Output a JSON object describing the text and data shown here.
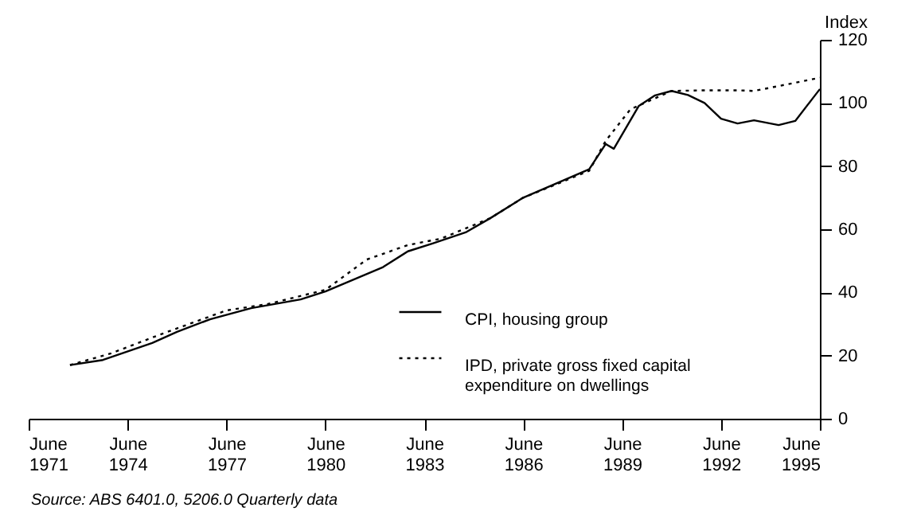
{
  "chart_data": {
    "type": "line",
    "ylabel": "Index",
    "xlim": [
      "1971-06",
      "1995-06"
    ],
    "xticks": [
      {
        "value": "1971-06",
        "label": "June 1971"
      },
      {
        "value": "1974-06",
        "label": "June 1974"
      },
      {
        "value": "1977-06",
        "label": "June 1977"
      },
      {
        "value": "1980-06",
        "label": "June 1980"
      },
      {
        "value": "1983-06",
        "label": "June 1983"
      },
      {
        "value": "1986-06",
        "label": "June 1986"
      },
      {
        "value": "1989-06",
        "label": "June 1989"
      },
      {
        "value": "1992-06",
        "label": "June 1992"
      },
      {
        "value": "1995-06",
        "label": "June 1995"
      }
    ],
    "ylim": [
      0,
      120
    ],
    "yticks": [
      0,
      20,
      40,
      60,
      80,
      100,
      120
    ],
    "grid": false,
    "legend": "bottom right",
    "marker": "none",
    "annotations": [
      "Source: ABS 6401.0, 5206.0 Quarterly data"
    ],
    "series": [
      {
        "name": "CPI, housing group",
        "color": "#000000",
        "line_style": "solid",
        "x": [
          "1972-09",
          "1973-09",
          "1975-03",
          "1975-12",
          "1976-12",
          "1978-03",
          "1979-09",
          "1980-06",
          "1982-03",
          "1982-12",
          "1983-09",
          "1984-09",
          "1985-06",
          "1986-06",
          "1988-06",
          "1988-12",
          "1989-03",
          "1989-12",
          "1990-06",
          "1990-12",
          "1991-06",
          "1991-12",
          "1992-06",
          "1992-12",
          "1993-06",
          "1994-03",
          "1994-09",
          "1995-03",
          "1995-06"
        ],
        "values": [
          17,
          18.6,
          24,
          27.5,
          31.5,
          35,
          37.8,
          40.3,
          48,
          53,
          55.5,
          59,
          63.5,
          70,
          79,
          87,
          85.5,
          99,
          102.4,
          103.8,
          102.5,
          100,
          95,
          93.5,
          94.5,
          93,
          94.3,
          101,
          104.4
        ]
      },
      {
        "name": "IPD, private gross fixed capital expenditure on dwellings",
        "color": "#000000",
        "line_style": "dotted",
        "x": [
          "1972-09",
          "1973-12",
          "1975-06",
          "1977-06",
          "1978-09",
          "1980-06",
          "1981-09",
          "1982-12",
          "1983-12",
          "1985-06",
          "1986-06",
          "1988-06",
          "1988-12",
          "1989-09",
          "1990-12",
          "1991-12",
          "1992-12",
          "1993-06",
          "1994-09",
          "1995-06"
        ],
        "values": [
          17,
          20.7,
          26.7,
          34.3,
          36.3,
          40.8,
          50.4,
          55,
          57,
          63.5,
          70,
          78.5,
          88,
          98,
          103.8,
          104,
          104,
          103.8,
          106.4,
          108
        ]
      }
    ]
  }
}
